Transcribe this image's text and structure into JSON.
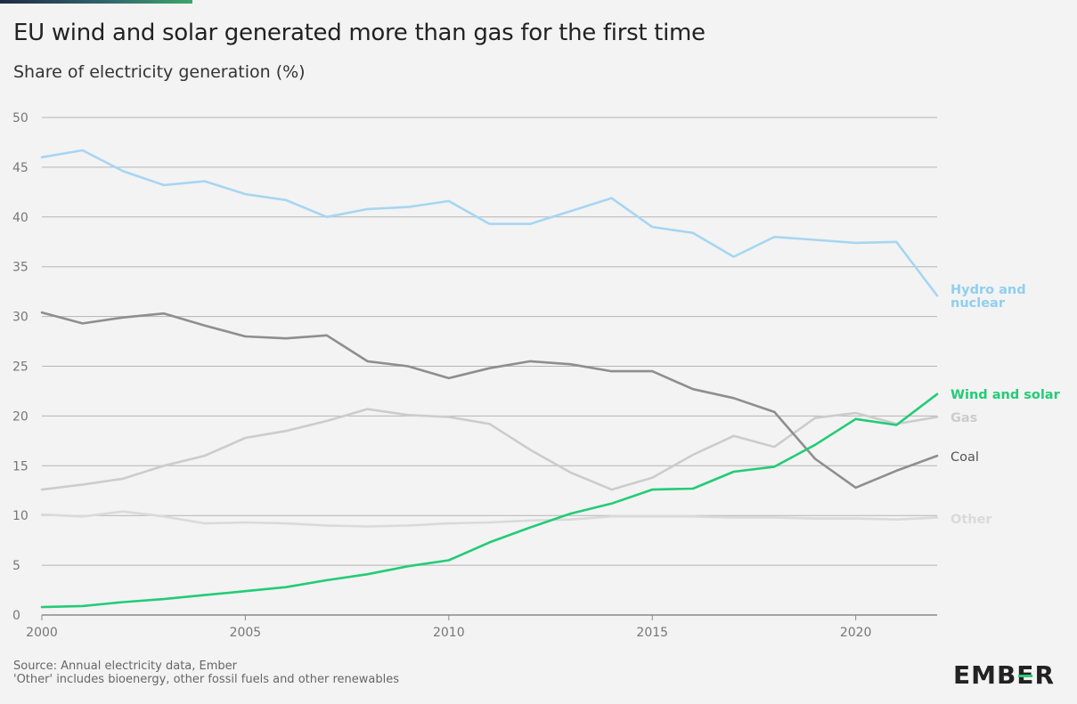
{
  "header": {
    "title": "EU wind and solar generated more than gas for the first time",
    "subtitle": "Share of electricity generation (%)"
  },
  "footer": {
    "source": "Source: Annual electricity data, Ember",
    "note": "'Other' includes bioenergy, other fossil fuels and other renewables",
    "logo_text": "EMBER"
  },
  "colors": {
    "hydro_nuclear": "#a6d6f2",
    "wind_solar": "#22cc77",
    "gas": "#cccccc",
    "coal": "#8e8e8e",
    "other": "#dadada",
    "grid": "#b5b5b5",
    "axis_text": "#777777"
  },
  "chart_data": {
    "type": "line",
    "x": [
      2000,
      2001,
      2002,
      2003,
      2004,
      2005,
      2006,
      2007,
      2008,
      2009,
      2010,
      2011,
      2012,
      2013,
      2014,
      2015,
      2016,
      2017,
      2018,
      2019,
      2020,
      2021,
      2022
    ],
    "xticks": [
      "2000",
      "2005",
      "2010",
      "2015",
      "2020"
    ],
    "yticks": [
      "0",
      "5",
      "10",
      "15",
      "20",
      "25",
      "30",
      "35",
      "40",
      "45",
      "50"
    ],
    "xlim": [
      2000,
      2022
    ],
    "ylim": [
      0,
      50
    ],
    "grid": true,
    "series": [
      {
        "name": "Other",
        "color": "#dadada",
        "labelColor": "#dadada",
        "bold": true,
        "values": [
          10.1,
          9.9,
          10.4,
          9.9,
          9.2,
          9.3,
          9.2,
          9.0,
          8.9,
          9.0,
          9.2,
          9.3,
          9.5,
          9.6,
          9.9,
          9.9,
          9.9,
          9.8,
          9.8,
          9.7,
          9.7,
          9.6,
          9.8
        ]
      },
      {
        "name": "Gas",
        "color": "#cccccc",
        "labelColor": "#cccccc",
        "bold": true,
        "values": [
          12.6,
          13.1,
          13.7,
          15.0,
          16.0,
          17.8,
          18.5,
          19.5,
          20.7,
          20.1,
          19.9,
          19.2,
          16.6,
          14.3,
          12.6,
          13.8,
          16.1,
          18.0,
          16.9,
          19.8,
          20.3,
          19.2,
          19.9
        ]
      },
      {
        "name": "Coal",
        "color": "#8e8e8e",
        "labelColor": "#555555",
        "bold": false,
        "values": [
          30.4,
          29.3,
          29.9,
          30.3,
          29.1,
          28.0,
          27.8,
          28.1,
          25.5,
          25.0,
          23.8,
          24.8,
          25.5,
          25.2,
          24.5,
          24.5,
          22.7,
          21.8,
          20.4,
          15.7,
          12.8,
          14.5,
          16.0
        ]
      },
      {
        "name": "Hydro and nuclear",
        "color": "#a6d6f2",
        "labelColor": "#8fcfef",
        "bold": true,
        "values": [
          46.0,
          46.7,
          44.6,
          43.2,
          43.6,
          42.3,
          41.7,
          40.0,
          40.8,
          41.0,
          41.6,
          39.3,
          39.3,
          40.6,
          41.9,
          39.0,
          38.4,
          36.0,
          38.0,
          37.7,
          37.4,
          37.5,
          32.1
        ]
      },
      {
        "name": "Wind and solar",
        "color": "#22cc77",
        "labelColor": "#22cc77",
        "bold": true,
        "values": [
          0.8,
          0.9,
          1.3,
          1.6,
          2.0,
          2.4,
          2.8,
          3.5,
          4.1,
          4.9,
          5.5,
          7.3,
          8.8,
          10.2,
          11.2,
          12.6,
          12.7,
          14.4,
          14.9,
          17.1,
          19.7,
          19.1,
          22.2
        ]
      }
    ]
  }
}
